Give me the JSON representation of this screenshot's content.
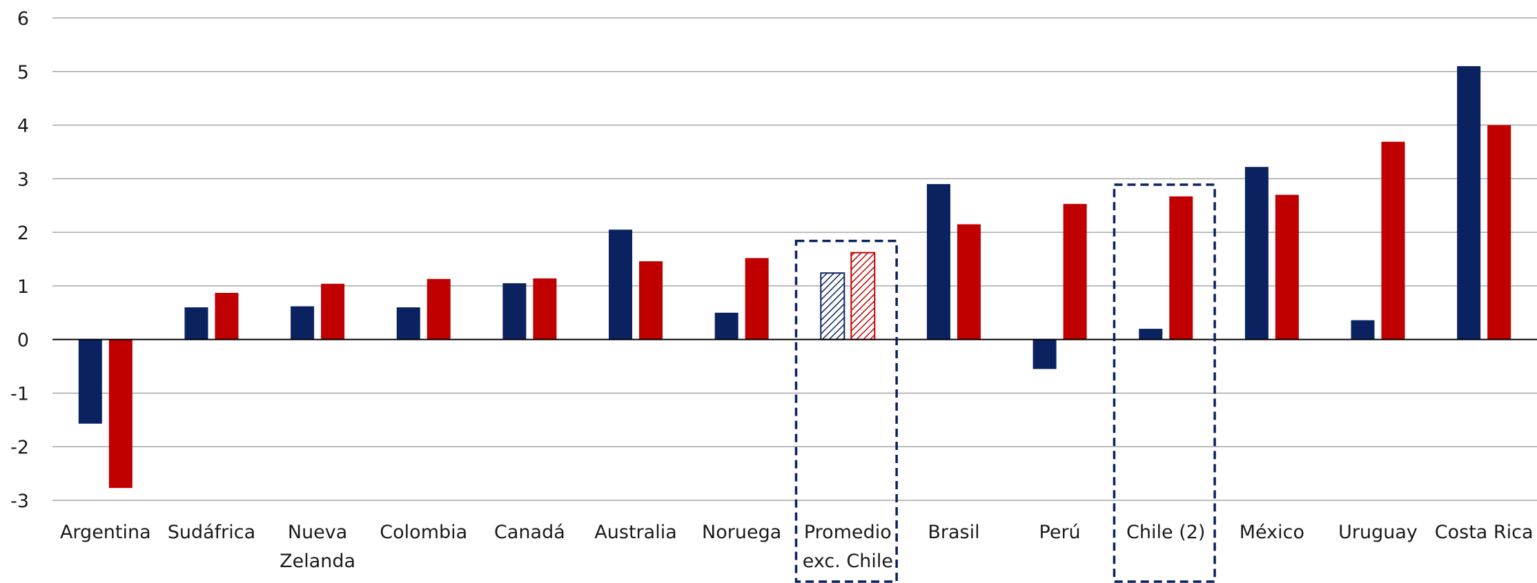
{
  "chart_data": {
    "type": "bar",
    "title": "",
    "xlabel": "",
    "ylabel": "",
    "ylim": [
      -3,
      6
    ],
    "yticks": [
      6,
      5,
      4,
      3,
      2,
      1,
      0,
      -1,
      -2,
      -3
    ],
    "grid": true,
    "legend": "none",
    "categories": [
      [
        "Argentina"
      ],
      [
        "Sudáfrica"
      ],
      [
        "Nueva",
        "Zelanda"
      ],
      [
        "Colombia"
      ],
      [
        "Canadá"
      ],
      [
        "Australia"
      ],
      [
        "Noruega"
      ],
      [
        "Promedio",
        "exc. Chile"
      ],
      [
        "Brasil"
      ],
      [
        "Perú"
      ],
      [
        "Chile (2)"
      ],
      [
        "México"
      ],
      [
        "Uruguay"
      ],
      [
        "Costa Rica"
      ]
    ],
    "series": [
      {
        "color": "#0b2260",
        "values": [
          -1.57,
          0.6,
          0.62,
          0.6,
          1.05,
          2.05,
          0.5,
          1.24,
          2.9,
          -0.55,
          0.2,
          3.22,
          0.36,
          5.1
        ]
      },
      {
        "color": "#c00000",
        "values": [
          -2.77,
          0.87,
          1.04,
          1.13,
          1.14,
          1.46,
          1.52,
          1.62,
          2.15,
          2.53,
          2.67,
          2.7,
          3.69,
          4.0
        ]
      }
    ],
    "hatched_categories": [
      7
    ],
    "highlighted_categories": [
      7,
      10
    ],
    "highlight_color": "#0b2260"
  }
}
